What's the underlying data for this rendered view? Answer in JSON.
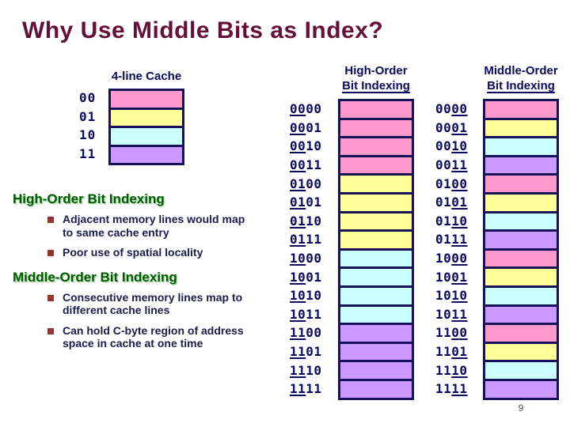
{
  "title": "Why Use Middle Bits as Index?",
  "page_number": "9",
  "palette": {
    "pink": "#ff99cb",
    "yellow": "#ffff99",
    "cyan": "#ccffff",
    "purple": "#cc99ff",
    "border_navy": "#171159",
    "text_navy": "#0a0a60",
    "title_maroon": "#651039",
    "heading_green": "#005a00",
    "bullet_maroon": "#993333"
  },
  "cache_diagram": {
    "title": "4-line Cache",
    "rows": [
      {
        "label": "00",
        "color": "pink"
      },
      {
        "label": "01",
        "color": "yellow"
      },
      {
        "label": "10",
        "color": "cyan"
      },
      {
        "label": "11",
        "color": "purple"
      }
    ]
  },
  "sections": [
    {
      "heading": "High-Order Bit Indexing",
      "bullets": [
        {
          "lines": [
            "Adjacent memory lines would map",
            "to same cache entry"
          ]
        },
        {
          "lines": [
            "Poor use of spatial locality"
          ]
        }
      ]
    },
    {
      "heading": "Middle-Order Bit Indexing",
      "bullets": [
        {
          "lines": [
            "Consecutive memory lines map to",
            "different cache lines"
          ]
        },
        {
          "lines": [
            "Can hold C-byte region of address",
            "space in cache at one time"
          ]
        }
      ]
    }
  ],
  "mem_columns": [
    {
      "header_line1": "High-Order",
      "header_line2": "Bit Indexing",
      "rows": [
        {
          "a": "",
          "u": "00",
          "b": "00",
          "color": "pink"
        },
        {
          "a": "",
          "u": "00",
          "b": "01",
          "color": "pink"
        },
        {
          "a": "",
          "u": "00",
          "b": "10",
          "color": "pink"
        },
        {
          "a": "",
          "u": "00",
          "b": "11",
          "color": "pink"
        },
        {
          "a": "",
          "u": "01",
          "b": "00",
          "color": "yellow"
        },
        {
          "a": "",
          "u": "01",
          "b": "01",
          "color": "yellow"
        },
        {
          "a": "",
          "u": "01",
          "b": "10",
          "color": "yellow"
        },
        {
          "a": "",
          "u": "01",
          "b": "11",
          "color": "yellow"
        },
        {
          "a": "",
          "u": "10",
          "b": "00",
          "color": "cyan"
        },
        {
          "a": "",
          "u": "10",
          "b": "01",
          "color": "cyan"
        },
        {
          "a": "",
          "u": "10",
          "b": "10",
          "color": "cyan"
        },
        {
          "a": "",
          "u": "10",
          "b": "11",
          "color": "cyan"
        },
        {
          "a": "",
          "u": "11",
          "b": "00",
          "color": "purple"
        },
        {
          "a": "",
          "u": "11",
          "b": "01",
          "color": "purple"
        },
        {
          "a": "",
          "u": "11",
          "b": "10",
          "color": "purple"
        },
        {
          "a": "",
          "u": "11",
          "b": "11",
          "color": "purple"
        }
      ]
    },
    {
      "header_line1": "Middle-Order",
      "header_line2": "Bit Indexing",
      "rows": [
        {
          "a": "00",
          "u": "00",
          "b": "",
          "color": "pink"
        },
        {
          "a": "00",
          "u": "01",
          "b": "",
          "color": "yellow"
        },
        {
          "a": "00",
          "u": "10",
          "b": "",
          "color": "cyan"
        },
        {
          "a": "00",
          "u": "11",
          "b": "",
          "color": "purple"
        },
        {
          "a": "01",
          "u": "00",
          "b": "",
          "color": "pink"
        },
        {
          "a": "01",
          "u": "01",
          "b": "",
          "color": "yellow"
        },
        {
          "a": "01",
          "u": "10",
          "b": "",
          "color": "cyan"
        },
        {
          "a": "01",
          "u": "11",
          "b": "",
          "color": "purple"
        },
        {
          "a": "10",
          "u": "00",
          "b": "",
          "color": "pink"
        },
        {
          "a": "10",
          "u": "01",
          "b": "",
          "color": "yellow"
        },
        {
          "a": "10",
          "u": "10",
          "b": "",
          "color": "cyan"
        },
        {
          "a": "10",
          "u": "11",
          "b": "",
          "color": "purple"
        },
        {
          "a": "11",
          "u": "00",
          "b": "",
          "color": "pink"
        },
        {
          "a": "11",
          "u": "01",
          "b": "",
          "color": "yellow"
        },
        {
          "a": "11",
          "u": "10",
          "b": "",
          "color": "cyan"
        },
        {
          "a": "11",
          "u": "11",
          "b": "",
          "color": "purple"
        }
      ]
    }
  ]
}
